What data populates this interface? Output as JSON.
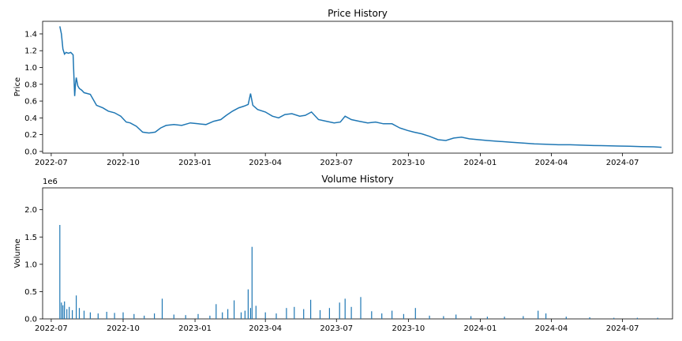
{
  "chart_data": [
    {
      "type": "line",
      "title": "Price History",
      "xlabel": "",
      "ylabel": "Price",
      "x_range": [
        "2022-06-20",
        "2024-09-03"
      ],
      "ylim": [
        -0.02,
        1.55
      ],
      "x_ticks": [
        "2022-07",
        "2022-10",
        "2023-01",
        "2023-04",
        "2023-07",
        "2023-10",
        "2024-01",
        "2024-04",
        "2024-07"
      ],
      "y_ticks": [
        "0.0",
        "0.2",
        "0.4",
        "0.6",
        "0.8",
        "1.0",
        "1.2",
        "1.4"
      ],
      "grid": false,
      "color": "#1f77b4",
      "x": [
        "2022-07-12",
        "2022-07-14",
        "2022-07-16",
        "2022-07-18",
        "2022-07-20",
        "2022-07-23",
        "2022-07-26",
        "2022-07-29",
        "2022-07-31",
        "2022-08-01",
        "2022-08-02",
        "2022-08-04",
        "2022-08-06",
        "2022-08-09",
        "2022-08-12",
        "2022-08-20",
        "2022-08-28",
        "2022-09-05",
        "2022-09-12",
        "2022-09-20",
        "2022-09-28",
        "2022-10-05",
        "2022-10-10",
        "2022-10-18",
        "2022-10-26",
        "2022-11-03",
        "2022-11-11",
        "2022-11-18",
        "2022-11-25",
        "2022-12-05",
        "2022-12-15",
        "2022-12-26",
        "2023-01-05",
        "2023-01-15",
        "2023-01-25",
        "2023-02-03",
        "2023-02-10",
        "2023-02-18",
        "2023-02-26",
        "2023-03-05",
        "2023-03-10",
        "2023-03-13",
        "2023-03-16",
        "2023-03-22",
        "2023-04-01",
        "2023-04-10",
        "2023-04-18",
        "2023-04-26",
        "2023-05-05",
        "2023-05-15",
        "2023-05-22",
        "2023-05-30",
        "2023-06-08",
        "2023-06-18",
        "2023-06-28",
        "2023-07-06",
        "2023-07-12",
        "2023-07-20",
        "2023-07-30",
        "2023-08-10",
        "2023-08-20",
        "2023-08-30",
        "2023-09-10",
        "2023-09-20",
        "2023-09-30",
        "2023-10-08",
        "2023-10-18",
        "2023-10-28",
        "2023-11-08",
        "2023-11-18",
        "2023-11-28",
        "2023-12-08",
        "2023-12-18",
        "2023-12-30",
        "2024-01-10",
        "2024-01-25",
        "2024-02-10",
        "2024-02-25",
        "2024-03-10",
        "2024-03-25",
        "2024-04-10",
        "2024-04-25",
        "2024-05-10",
        "2024-05-25",
        "2024-06-10",
        "2024-06-25",
        "2024-07-10",
        "2024-07-25",
        "2024-08-10",
        "2024-08-20"
      ],
      "y": [
        1.49,
        1.4,
        1.22,
        1.16,
        1.18,
        1.17,
        1.18,
        1.15,
        0.66,
        0.8,
        0.88,
        0.78,
        0.75,
        0.73,
        0.7,
        0.68,
        0.55,
        0.52,
        0.48,
        0.46,
        0.42,
        0.35,
        0.34,
        0.3,
        0.23,
        0.22,
        0.23,
        0.28,
        0.31,
        0.32,
        0.31,
        0.34,
        0.33,
        0.32,
        0.36,
        0.38,
        0.43,
        0.48,
        0.52,
        0.54,
        0.56,
        0.69,
        0.55,
        0.5,
        0.47,
        0.42,
        0.4,
        0.44,
        0.45,
        0.42,
        0.43,
        0.47,
        0.38,
        0.36,
        0.34,
        0.35,
        0.42,
        0.38,
        0.36,
        0.34,
        0.35,
        0.33,
        0.33,
        0.28,
        0.25,
        0.23,
        0.21,
        0.18,
        0.14,
        0.13,
        0.16,
        0.17,
        0.15,
        0.14,
        0.13,
        0.12,
        0.11,
        0.1,
        0.09,
        0.085,
        0.08,
        0.08,
        0.075,
        0.07,
        0.068,
        0.065,
        0.062,
        0.058,
        0.055,
        0.05
      ]
    },
    {
      "type": "bar",
      "title": "Volume History",
      "xlabel": "",
      "ylabel": "Volume",
      "y_offset_label": "1e6",
      "x_range": [
        "2022-06-20",
        "2024-09-03"
      ],
      "ylim": [
        0,
        2.4
      ],
      "x_ticks": [
        "2022-07",
        "2022-10",
        "2023-01",
        "2023-04",
        "2023-07",
        "2023-10",
        "2024-01",
        "2024-04",
        "2024-07"
      ],
      "y_ticks": [
        "0.0",
        "0.5",
        "1.0",
        "1.5",
        "2.0"
      ],
      "grid": false,
      "color": "#1f77b4",
      "x": [
        "2022-07-12",
        "2022-07-14",
        "2022-07-16",
        "2022-07-18",
        "2022-07-21",
        "2022-07-24",
        "2022-07-28",
        "2022-08-02",
        "2022-08-06",
        "2022-08-12",
        "2022-08-20",
        "2022-08-30",
        "2022-09-10",
        "2022-09-20",
        "2022-10-01",
        "2022-10-15",
        "2022-10-28",
        "2022-11-10",
        "2022-11-20",
        "2022-12-05",
        "2022-12-20",
        "2023-01-05",
        "2023-01-20",
        "2023-01-28",
        "2023-02-05",
        "2023-02-12",
        "2023-02-20",
        "2023-03-01",
        "2023-03-06",
        "2023-03-10",
        "2023-03-13",
        "2023-03-15",
        "2023-03-20",
        "2023-04-01",
        "2023-04-15",
        "2023-04-28",
        "2023-05-08",
        "2023-05-20",
        "2023-05-29",
        "2023-06-10",
        "2023-06-22",
        "2023-07-05",
        "2023-07-12",
        "2023-07-20",
        "2023-08-01",
        "2023-08-15",
        "2023-08-28",
        "2023-09-10",
        "2023-09-25",
        "2023-10-10",
        "2023-10-28",
        "2023-11-15",
        "2023-12-01",
        "2023-12-20",
        "2024-01-10",
        "2024-02-01",
        "2024-02-25",
        "2024-03-15",
        "2024-03-25",
        "2024-04-20",
        "2024-05-20",
        "2024-06-20",
        "2024-07-20",
        "2024-08-15"
      ],
      "values": [
        1.72,
        0.3,
        0.25,
        0.32,
        0.18,
        0.22,
        0.16,
        0.43,
        0.2,
        0.15,
        0.12,
        0.1,
        0.13,
        0.11,
        0.12,
        0.09,
        0.06,
        0.1,
        0.37,
        0.08,
        0.07,
        0.09,
        0.06,
        0.27,
        0.12,
        0.18,
        0.34,
        0.12,
        0.15,
        0.54,
        0.2,
        1.32,
        0.24,
        0.12,
        0.1,
        0.2,
        0.22,
        0.18,
        0.35,
        0.16,
        0.2,
        0.3,
        0.37,
        0.22,
        0.4,
        0.14,
        0.1,
        0.15,
        0.09,
        0.2,
        0.06,
        0.05,
        0.08,
        0.05,
        0.04,
        0.04,
        0.05,
        0.15,
        0.1,
        0.04,
        0.03,
        0.02,
        0.02,
        0.02
      ]
    }
  ]
}
